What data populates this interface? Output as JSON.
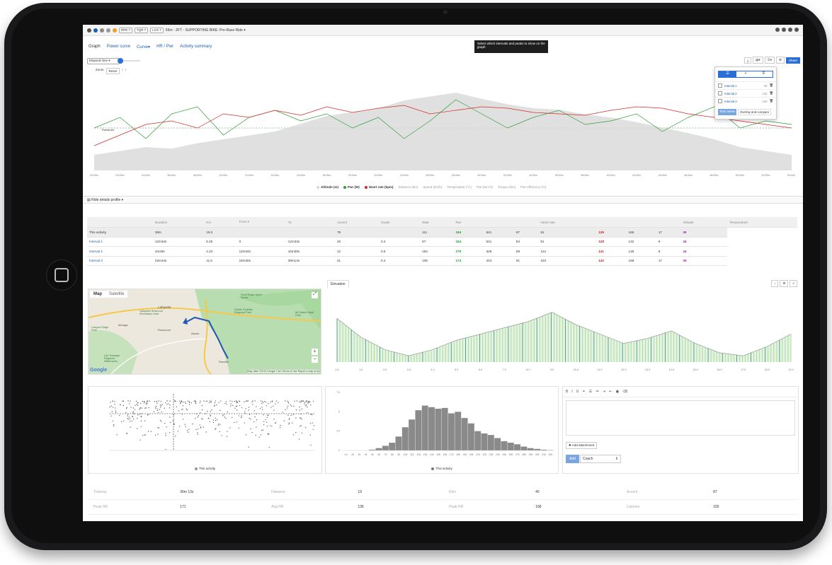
{
  "topbar": {
    "pills": [
      "RPE 7",
      "TQR 7",
      "LCS 7"
    ],
    "title": "55m - ZFT - SUPPORTING BIKE: Pre-Race Ride ▾"
  },
  "tabs": [
    "Graph",
    "Power curve",
    "Curve▾",
    "HR / Pwr",
    "Activity summary"
  ],
  "tooltip": "Select which intervals and peaks to show on the graph",
  "controls": {
    "x_axis_select": "Elapsed time",
    "zoom_label": "Zoom",
    "reset_label": "Reset",
    "share_label": "Share",
    "threshold_label": "Threshold"
  },
  "chart_data": [
    {
      "type": "line",
      "title": "",
      "x": [
        "00:00m",
        "02:00m",
        "04:00m",
        "06:00m",
        "08:00m",
        "10:00m",
        "12:00m",
        "14:00m",
        "16:00m",
        "18:00m",
        "20:00m",
        "22:00m",
        "24:00m",
        "26:00m",
        "28:00m",
        "30:00m",
        "32:00m",
        "34:00m",
        "36:00m",
        "38:00m",
        "40:00m",
        "42:00m",
        "44:00m",
        "46:00m",
        "48:00m",
        "50:00m",
        "52:00m",
        "54:00m"
      ],
      "series": [
        {
          "name": "Altitude (m)",
          "color": "#d8d8d8",
          "values": [
            20,
            25,
            30,
            28,
            35,
            40,
            45,
            50,
            60,
            70,
            75,
            80,
            90,
            95,
            100,
            92,
            85,
            80,
            78,
            72,
            68,
            62,
            55,
            48,
            40,
            30,
            25,
            20
          ]
        },
        {
          "name": "Pwr (W)",
          "color": "#2e9e3a",
          "values": [
            120,
            150,
            90,
            160,
            180,
            100,
            150,
            170,
            140,
            160,
            120,
            150,
            90,
            140,
            200,
            160,
            120,
            150,
            170,
            130,
            140,
            160,
            110,
            150,
            180,
            120,
            140,
            130
          ]
        },
        {
          "name": "Heart rate (bpm)",
          "color": "#d42a2a",
          "values": [
            95,
            110,
            125,
            130,
            120,
            140,
            135,
            145,
            138,
            150,
            142,
            148,
            152,
            140,
            145,
            150,
            148,
            142,
            140,
            138,
            145,
            150,
            148,
            140,
            135,
            130,
            125,
            120
          ]
        }
      ],
      "legend_off": [
        "Distance (km)",
        "Speed (km/h)",
        "Temperature (°C)",
        "Pwr bal (%)",
        "Torque (Nm)",
        "Pwr efficiency (%)"
      ]
    },
    {
      "type": "area",
      "title": "Elevation",
      "x": [
        0.0,
        1.0,
        2.0,
        3.0,
        4.0,
        5.0,
        6.0,
        7.0,
        8.0,
        9.0,
        10.0,
        11.0,
        12.0,
        13.0,
        14.0,
        15.0,
        16.0,
        17.0,
        18.0,
        19.0
      ],
      "y": [
        70,
        40,
        20,
        10,
        20,
        35,
        45,
        55,
        65,
        80,
        60,
        45,
        30,
        38,
        50,
        30,
        15,
        10,
        25,
        45
      ]
    },
    {
      "type": "scatter",
      "title": "",
      "series_name": "This activity"
    },
    {
      "type": "bar",
      "title": "",
      "categories": [
        "15",
        "25",
        "35",
        "45",
        "55",
        "65",
        "75",
        "85",
        "95",
        "105",
        "115",
        "125",
        "135",
        "145",
        "155",
        "165",
        "175",
        "185",
        "195",
        "205",
        "215",
        "225",
        "235",
        "245",
        "255",
        "265",
        "275",
        "285",
        "295",
        "305",
        "315",
        "325"
      ],
      "values": [
        0,
        0,
        0,
        0,
        0.1,
        0.3,
        0.6,
        1.0,
        1.8,
        3.0,
        4.0,
        5.2,
        5.8,
        5.6,
        5.4,
        5.5,
        4.8,
        5.0,
        4.2,
        3.5,
        2.5,
        2.2,
        2.0,
        1.6,
        1.2,
        1.0,
        0.8,
        0.5,
        0.3,
        0.2,
        0.1,
        0.05
      ],
      "series_name": "This activity",
      "ylim": [
        0,
        7.5
      ]
    }
  ],
  "intervals_panel": {
    "items": [
      {
        "label": "Interval 1",
        "value": "98"
      },
      {
        "label": "Interval 2",
        "value": "136"
      },
      {
        "label": "Interval 3",
        "value": "168"
      }
    ],
    "time_series_btn": "Time series",
    "overlay_btn": "Overlay and compare"
  },
  "section_title": "Ride details profile ▾",
  "table": {
    "headers": [
      "",
      "Duration",
      "Km",
      "From ▾",
      "To",
      "Ascent",
      "Grade",
      "Watt",
      "Pwr",
      "",
      "",
      "Heart rate",
      "",
      "",
      "",
      "Altitude",
      "Temperature"
    ],
    "rows": [
      [
        "This activity",
        "36m",
        "19.3",
        "",
        "",
        "79",
        "",
        "111",
        "194",
        "541",
        "87",
        "91",
        "135",
        "168",
        "17",
        "39",
        "18"
      ],
      [
        "Interval 1",
        "12m34s",
        "5.25",
        "0",
        "12m34s",
        "20",
        "0.4",
        "97",
        "164",
        "541",
        "84",
        "91",
        "128",
        "142",
        "9",
        "34",
        "12"
      ],
      [
        "Interval 2",
        "4m28s",
        "2.23",
        "12m34s",
        "16m30s",
        "12",
        "0.6",
        "163",
        "279",
        "326",
        "69",
        "122",
        "141",
        "149",
        "8",
        "44",
        "18"
      ],
      [
        "Interval 3",
        "22m44s",
        "11.5",
        "16m30s",
        "39m14s",
        "41",
        "0.4",
        "109",
        "174",
        "443",
        "91",
        "103",
        "142",
        "168",
        "17",
        "39",
        "18"
      ]
    ]
  },
  "map": {
    "tab_map": "Map",
    "tab_satellite": "Satellite",
    "places": [
      "Lafayette",
      "Lafayette Reservoir Recreation Area",
      "Moraga",
      "Canyon Ridge Park",
      "Shell Ridge Open Space",
      "Diablo Foothills Regional Park",
      "Mt Diablo State Park",
      "Alamo",
      "Rossmoor",
      "Danville",
      "Las Trampas Regional Wilderness"
    ],
    "attribution": "Map data ©2019 Google   2 km   Terms of Use   Report a map error",
    "google": "Google"
  },
  "elevation_tab": "Elevation",
  "hr_power_scatter_label": "This activity",
  "histogram_label": "This activity",
  "notes": {
    "add_attachment": "Add attachment",
    "add_btn": "Add",
    "coach_select": "Coach"
  },
  "stats": [
    [
      "Training",
      "36m 13s",
      "Distance",
      "19",
      "Elev",
      "40",
      "Ascent",
      "87"
    ],
    [
      "Peak HR",
      "171",
      "Avg HR",
      "136",
      "Peak HR",
      "168",
      "Calories",
      "336"
    ]
  ],
  "colors": {
    "pwr": "#2e9e3a",
    "hr": "#d42a2a",
    "alt": "#d8d8d8",
    "link": "#1a5fb4",
    "share": "#2a6fd6"
  }
}
